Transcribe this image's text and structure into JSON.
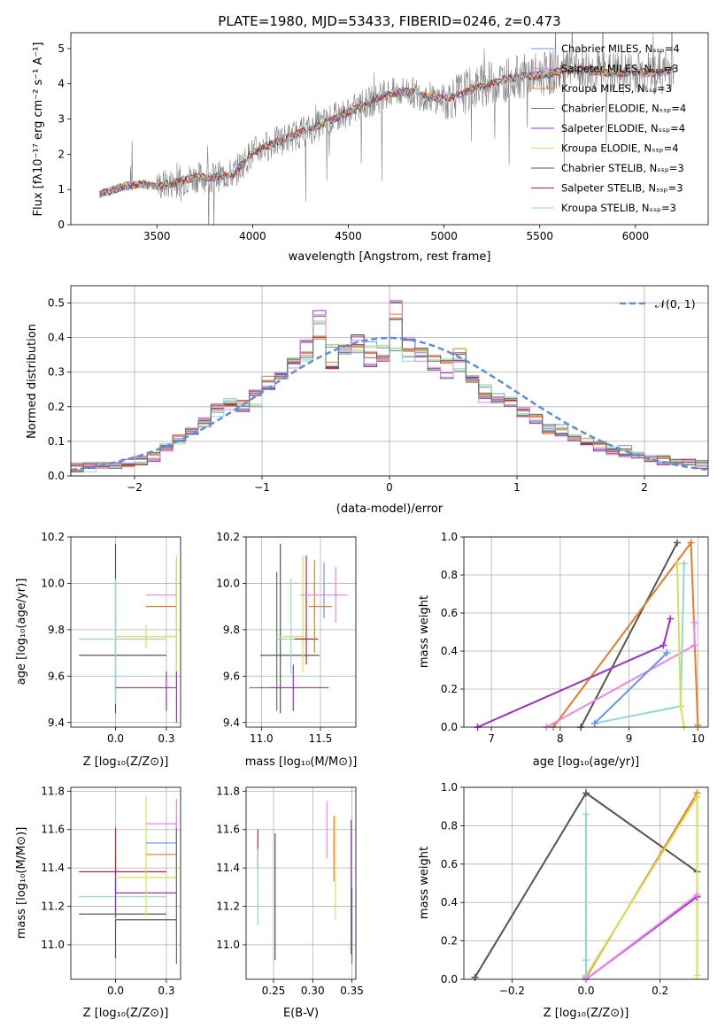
{
  "colors": {
    "Chabrier MILES": "#6495ed",
    "Salpeter MILES": "#ee82ee",
    "Kroupa MILES": "#e87c25",
    "Chabrier ELODIE": "#5a7a5a",
    "Salpeter ELODIE": "#9b30c8",
    "Kroupa ELODIE": "#d4e157",
    "Chabrier STELIB": "#555555",
    "Salpeter STELIB": "#c0282d",
    "Kroupa STELIB": "#8fd8d8",
    "normal": "#5b8fd6"
  },
  "chart_data": [
    {
      "type": "line",
      "title": "PLATE=1980, MJD=53433, FIBERID=0246, z=0.473",
      "xlabel": "wavelength [Angstrom, rest frame]",
      "ylabel": "Flux [fλ10⁻¹⁷ erg cm⁻² s⁻¹ A⁻¹]",
      "xlim": [
        3050,
        6380
      ],
      "ylim": [
        0,
        5.45
      ],
      "xticks": [
        3500,
        4000,
        4500,
        5000,
        5500,
        6000
      ],
      "yticks": [
        0,
        1,
        2,
        3,
        4,
        5
      ],
      "legend_position": "top-right",
      "legend": [
        {
          "label": "Chabrier MILES, Nₛₛₚ=4"
        },
        {
          "label": "Salpeter MILES, Nₛₛₚ=3"
        },
        {
          "label": "Kroupa MILES, Nₛₛₚ=3"
        },
        {
          "label": "Chabrier ELODIE, Nₛₛₚ=4"
        },
        {
          "label": "Salpeter ELODIE, Nₛₛₚ=4"
        },
        {
          "label": "Kroupa ELODIE, Nₛₛₚ=4"
        },
        {
          "label": "Chabrier STELIB, Nₛₛₚ=3"
        },
        {
          "label": "Salpeter STELIB, Nₛₛₚ=3"
        },
        {
          "label": "Kroupa STELIB, Nₛₛₚ=3"
        }
      ],
      "continuum_model": {
        "x": [
          3200,
          3300,
          3400,
          3500,
          3600,
          3700,
          3800,
          3900,
          4000,
          4100,
          4200,
          4300,
          4400,
          4500,
          4600,
          4700,
          4800,
          4900,
          5000,
          5100,
          5200,
          5300,
          5400,
          5500,
          5600,
          5700,
          5800,
          5900,
          6000,
          6100,
          6200
        ],
        "y": [
          0.85,
          1.05,
          1.15,
          1.1,
          1.2,
          1.35,
          1.35,
          1.45,
          2.05,
          2.3,
          2.5,
          2.7,
          2.95,
          3.2,
          3.45,
          3.7,
          3.8,
          3.65,
          3.55,
          3.75,
          3.95,
          4.1,
          4.2,
          4.25,
          4.35,
          4.4,
          4.35,
          4.3,
          4.35,
          4.3,
          4.4
        ]
      }
    },
    {
      "type": "line",
      "xlabel": "(data-model)/error",
      "ylabel": "Normed distribution",
      "xlim": [
        -2.5,
        2.5
      ],
      "ylim": [
        0,
        0.55
      ],
      "xticks": [
        -2,
        -1,
        0,
        1,
        2
      ],
      "yticks": [
        0.0,
        0.1,
        0.2,
        0.3,
        0.4,
        0.5
      ],
      "legend": [
        {
          "label": "𝒩(0, 1)"
        }
      ],
      "bin_width": 0.1,
      "histogram_bins": 50,
      "series": [
        {
          "values": [
            0.02,
            0.02,
            0.03,
            0.03,
            0.03,
            0.04,
            0.06,
            0.09,
            0.1,
            0.12,
            0.15,
            0.18,
            0.22,
            0.2,
            0.2,
            0.26,
            0.29,
            0.33,
            0.34,
            0.44,
            0.38,
            0.36,
            0.36,
            0.38,
            0.37,
            0.37,
            0.34,
            0.36,
            0.34,
            0.33,
            0.31,
            0.28,
            0.26,
            0.23,
            0.22,
            0.18,
            0.17,
            0.14,
            0.14,
            0.11,
            0.1,
            0.09,
            0.08,
            0.08,
            0.06,
            0.05,
            0.05,
            0.04,
            0.04,
            0.03
          ]
        },
        {
          "values": [
            0.03,
            0.03,
            0.03,
            0.03,
            0.04,
            0.05,
            0.05,
            0.08,
            0.1,
            0.13,
            0.16,
            0.2,
            0.2,
            0.19,
            0.24,
            0.25,
            0.3,
            0.32,
            0.39,
            0.47,
            0.31,
            0.36,
            0.4,
            0.32,
            0.34,
            0.5,
            0.4,
            0.34,
            0.31,
            0.29,
            0.33,
            0.29,
            0.22,
            0.22,
            0.21,
            0.19,
            0.16,
            0.14,
            0.12,
            0.11,
            0.09,
            0.08,
            0.07,
            0.06,
            0.06,
            0.05,
            0.04,
            0.04,
            0.04,
            0.03
          ]
        },
        {
          "values": [
            0.02,
            0.03,
            0.03,
            0.03,
            0.03,
            0.04,
            0.06,
            0.08,
            0.11,
            0.13,
            0.16,
            0.2,
            0.21,
            0.21,
            0.24,
            0.28,
            0.28,
            0.34,
            0.35,
            0.4,
            0.32,
            0.37,
            0.38,
            0.35,
            0.34,
            0.46,
            0.36,
            0.37,
            0.34,
            0.33,
            0.36,
            0.27,
            0.24,
            0.22,
            0.22,
            0.18,
            0.17,
            0.13,
            0.13,
            0.11,
            0.1,
            0.09,
            0.07,
            0.07,
            0.06,
            0.05,
            0.05,
            0.04,
            0.04,
            0.04
          ]
        }
      ]
    },
    {
      "type": "scatter",
      "xlabel": "Z [log₁₀(Z/Z⊙)]",
      "ylabel": "age  [log₁₀(age/yr)]",
      "xlim": [
        -0.22,
        0.32
      ],
      "ylim": [
        9.38,
        10.2
      ],
      "xticks": [
        0.0,
        0.25
      ],
      "yticks": [
        9.4,
        9.6,
        9.8,
        10.0,
        10.2
      ],
      "points": [
        {
          "series": "Chabrier STELIB",
          "x": 0.0,
          "y": 9.69,
          "xerr": [
            0.18,
            0.25
          ],
          "yerr": [
            0.25,
            0.48
          ]
        },
        {
          "series": "Kroupa STELIB",
          "x": 0.0,
          "y": 9.76,
          "xerr": [
            0.18,
            0.25
          ],
          "yerr": [
            0.28,
            0.26
          ]
        },
        {
          "series": "Kroupa ELODIE",
          "x": 0.15,
          "y": 9.77,
          "xerr": [
            0.15,
            0.15
          ],
          "yerr": [
            0.05,
            0.05
          ]
        },
        {
          "series": "Salpeter ELODIE",
          "x": 0.25,
          "y": 9.55,
          "xerr": [
            0.25,
            0.05
          ],
          "yerr": [
            0.1,
            0.07
          ]
        },
        {
          "series": "Salpeter MILES",
          "x": 0.3,
          "y": 9.95,
          "xerr": [
            0.15,
            0.0
          ],
          "yerr": [
            0.1,
            0.1
          ]
        },
        {
          "series": "Kroupa MILES",
          "x": 0.3,
          "y": 9.9,
          "xerr": [
            0.15,
            0.0
          ],
          "yerr": [
            0.3,
            0.2
          ]
        },
        {
          "series": "Kroupa ELODIE",
          "x": 0.3,
          "y": 9.8,
          "xerr": [
            0.0,
            0.0
          ],
          "yerr": [
            0.25,
            0.32
          ]
        },
        {
          "series": "Salpeter ELODIE",
          "x": 0.3,
          "y": 9.5,
          "xerr": [
            0.0,
            0.0
          ],
          "yerr": [
            0.1,
            0.12
          ]
        }
      ]
    },
    {
      "type": "scatter",
      "xlabel": "mass [log₁₀(M/M⊙)]",
      "ylabel": "",
      "xlim": [
        10.87,
        11.8
      ],
      "ylim": [
        9.38,
        10.2
      ],
      "xticks": [
        11.0,
        11.5
      ],
      "yticks": [
        9.4,
        9.6,
        9.8,
        10.0,
        10.2
      ],
      "points": [
        {
          "series": "Chabrier STELIB",
          "x": 11.16,
          "y": 9.69,
          "xerr": [
            0.17,
            0.33
          ],
          "yerr": [
            0.25,
            0.48
          ]
        },
        {
          "series": "Chabrier ELODIE",
          "x": 11.13,
          "y": 9.55,
          "xerr": [
            0.23,
            0.2
          ],
          "yerr": [
            0.1,
            0.5
          ]
        },
        {
          "series": "Kroupa STELIB",
          "x": 11.25,
          "y": 9.76,
          "xerr": [
            0.12,
            0.13
          ],
          "yerr": [
            0.15,
            0.26
          ]
        },
        {
          "series": "Kroupa ELODIE",
          "x": 11.35,
          "y": 9.77,
          "xerr": [
            0.2,
            0.0
          ],
          "yerr": [
            0.15,
            0.35
          ]
        },
        {
          "series": "Salpeter STELIB",
          "x": 11.38,
          "y": 9.76,
          "xerr": [
            0.1,
            0.1
          ],
          "yerr": [
            0.11,
            0.36
          ]
        },
        {
          "series": "Salpeter ELODIE",
          "x": 11.27,
          "y": 9.55,
          "xerr": [
            0.2,
            0.3
          ],
          "yerr": [
            0.1,
            0.1
          ]
        },
        {
          "series": "Kroupa MILES",
          "x": 11.45,
          "y": 9.9,
          "xerr": [
            0.05,
            0.15
          ],
          "yerr": [
            0.2,
            0.2
          ]
        },
        {
          "series": "Salpeter MILES",
          "x": 11.63,
          "y": 9.95,
          "xerr": [
            0.3,
            0.1
          ],
          "yerr": [
            0.12,
            0.12
          ]
        },
        {
          "series": "Chabrier MILES",
          "x": 11.53,
          "y": 9.95,
          "xerr": [
            0.0,
            0.0
          ],
          "yerr": [
            0.1,
            0.14
          ]
        }
      ]
    },
    {
      "type": "line",
      "xlabel": "age  [log₁₀(age/yr)]",
      "ylabel": "mass weight",
      "xlim": [
        6.6,
        10.15
      ],
      "ylim": [
        0,
        1.0
      ],
      "xticks": [
        7,
        8,
        9,
        10
      ],
      "yticks": [
        0.0,
        0.2,
        0.4,
        0.6,
        0.8,
        1.0
      ],
      "series": [
        {
          "name": "Chabrier STELIB",
          "x": [
            8.3,
            9.7
          ],
          "y": [
            0.0,
            0.97
          ]
        },
        {
          "name": "Kroupa MILES",
          "x": [
            7.9,
            9.9,
            10.0
          ],
          "y": [
            0.0,
            0.97,
            0.01
          ]
        },
        {
          "name": "Salpeter ELODIE",
          "x": [
            6.8,
            9.5,
            9.6
          ],
          "y": [
            0.0,
            0.43,
            0.57
          ]
        },
        {
          "name": "Salpeter MILES",
          "x": [
            7.8,
            9.95,
            9.95
          ],
          "y": [
            0.0,
            0.43,
            0.55
          ]
        },
        {
          "name": "Kroupa STELIB",
          "x": [
            8.5,
            9.75,
            9.8
          ],
          "y": [
            0.02,
            0.11,
            0.86
          ]
        },
        {
          "name": "Kroupa ELODIE",
          "x": [
            9.8,
            9.75,
            9.7
          ],
          "y": [
            0.0,
            0.11,
            0.86
          ]
        },
        {
          "name": "Chabrier MILES",
          "x": [
            8.5,
            9.55
          ],
          "y": [
            0.02,
            0.39
          ]
        }
      ]
    },
    {
      "type": "scatter",
      "xlabel": "Z [log₁₀(Z/Z⊙)]",
      "ylabel": "mass [log₁₀(M/M⊙)]",
      "xlim": [
        -0.22,
        0.32
      ],
      "ylim": [
        10.82,
        11.82
      ],
      "xticks": [
        0.0,
        0.25
      ],
      "yticks": [
        11.0,
        11.2,
        11.4,
        11.6,
        11.8
      ],
      "points": [
        {
          "series": "Chabrier STELIB",
          "x": 0.0,
          "y": 11.16,
          "xerr": [
            0.18,
            0.25
          ],
          "yerr": [
            0.23,
            0.3
          ]
        },
        {
          "series": "Kroupa STELIB",
          "x": 0.0,
          "y": 11.25,
          "xerr": [
            0.18,
            0.25
          ],
          "yerr": [
            0.12,
            0.25
          ]
        },
        {
          "series": "Salpeter STELIB",
          "x": 0.0,
          "y": 11.38,
          "xerr": [
            0.18,
            0.25
          ],
          "yerr": [
            0.1,
            0.23
          ]
        },
        {
          "series": "Salpeter ELODIE",
          "x": 0.0,
          "y": 11.27,
          "xerr": [
            0.0,
            0.3
          ],
          "yerr": [
            0.13,
            0.13
          ]
        },
        {
          "series": "Chabrier STELIB",
          "x": 0.0,
          "y": 11.13,
          "xerr": [
            0.0,
            0.3
          ],
          "yerr": [
            0.0,
            0.0
          ]
        },
        {
          "series": "Kroupa ELODIE",
          "x": 0.15,
          "y": 11.35,
          "xerr": [
            0.15,
            0.15
          ],
          "yerr": [
            0.2,
            0.42
          ]
        },
        {
          "series": "Kroupa MILES",
          "x": 0.3,
          "y": 11.47,
          "xerr": [
            0.15,
            0.0
          ],
          "yerr": [
            0.4,
            0.2
          ]
        },
        {
          "series": "Chabrier MILES",
          "x": 0.3,
          "y": 11.53,
          "xerr": [
            0.15,
            0.0
          ],
          "yerr": [
            0.1,
            0.1
          ]
        },
        {
          "series": "Salpeter MILES",
          "x": 0.3,
          "y": 11.63,
          "xerr": [
            0.15,
            0.0
          ],
          "yerr": [
            0.02,
            0.13
          ]
        },
        {
          "series": "Chabrier ELODIE",
          "x": 0.3,
          "y": 11.25,
          "xerr": [
            0.0,
            0.0
          ],
          "yerr": [
            0.35,
            0.35
          ]
        }
      ]
    },
    {
      "type": "scatter",
      "xlabel": "E(B-V)",
      "ylabel": "",
      "xlim": [
        0.215,
        0.355
      ],
      "ylim": [
        10.82,
        11.82
      ],
      "xticks": [
        0.25,
        0.3,
        0.35
      ],
      "yticks": [
        11.0,
        11.2,
        11.4,
        11.6,
        11.8
      ],
      "points": [
        {
          "series": "Salpeter STELIB",
          "x": 0.23,
          "y": 11.5,
          "yerr": [
            0.1,
            0.1
          ]
        },
        {
          "series": "Kroupa STELIB",
          "x": 0.23,
          "y": 11.3,
          "yerr": [
            0.2,
            0.2
          ]
        },
        {
          "series": "Chabrier STELIB",
          "x": 0.252,
          "y": 11.25,
          "yerr": [
            0.33,
            0.33
          ]
        },
        {
          "series": "Salpeter MILES",
          "x": 0.318,
          "y": 11.6,
          "yerr": [
            0.15,
            0.15
          ]
        },
        {
          "series": "Kroupa MILES",
          "x": 0.327,
          "y": 11.5,
          "yerr": [
            0.17,
            0.17
          ]
        },
        {
          "series": "Kroupa ELODIE",
          "x": 0.329,
          "y": 11.4,
          "yerr": [
            0.27,
            0.27
          ]
        },
        {
          "series": "Salpeter ELODIE",
          "x": 0.349,
          "y": 11.3,
          "yerr": [
            0.35,
            0.35
          ]
        },
        {
          "series": "Chabrier ELODIE",
          "x": 0.35,
          "y": 11.1,
          "yerr": [
            0.2,
            0.2
          ]
        }
      ]
    },
    {
      "type": "line",
      "xlabel": "Z [log₁₀(Z/Z⊙)]",
      "ylabel": "mass weight",
      "xlim": [
        -0.33,
        0.33
      ],
      "ylim": [
        0,
        1.0
      ],
      "xticks": [
        -0.2,
        0.0,
        0.2
      ],
      "yticks": [
        0.0,
        0.2,
        0.4,
        0.6,
        0.8,
        1.0
      ],
      "series": [
        {
          "name": "Chabrier STELIB",
          "x": [
            -0.3,
            0.0,
            0.3
          ],
          "y": [
            0.01,
            0.97,
            0.56
          ]
        },
        {
          "name": "Kroupa MILES",
          "x": [
            0.0,
            0.3
          ],
          "y": [
            0.01,
            0.97
          ]
        },
        {
          "name": "Kroupa ELODIE",
          "x": [
            0.0,
            0.3,
            0.3
          ],
          "y": [
            0.02,
            0.95,
            0.02
          ]
        },
        {
          "name": "Salpeter ELODIE",
          "x": [
            0.0,
            0.3
          ],
          "y": [
            0.0,
            0.43
          ]
        },
        {
          "name": "Salpeter MILES",
          "x": [
            0.0,
            0.3
          ],
          "y": [
            0.0,
            0.44
          ]
        },
        {
          "name": "Kroupa STELIB",
          "x": [
            0.0,
            0.0,
            0.0
          ],
          "y": [
            0.02,
            0.86,
            0.1
          ]
        }
      ]
    }
  ]
}
